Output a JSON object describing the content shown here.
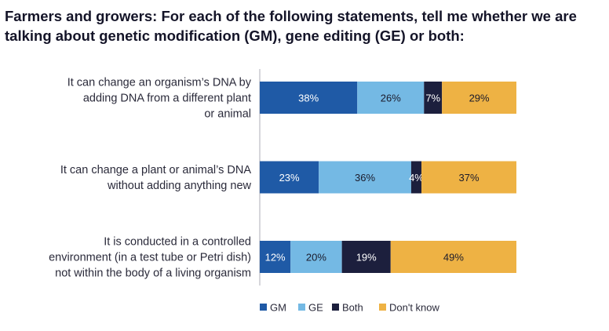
{
  "title": "Farmers and growers: For each of the following statements, tell me whether we are talking about genetic modification (GM), gene editing (GE) or both:",
  "chart_data": {
    "type": "bar",
    "orientation": "horizontal",
    "stacked": true,
    "categories": [
      [
        "It can change an organism’s DNA by",
        "adding DNA from a different plant",
        "or animal"
      ],
      [
        "It can change a plant or animal’s DNA",
        "without adding anything new"
      ],
      [
        "It is conducted in a controlled",
        "environment (in a test tube or Petri dish)",
        "not within the body of a living organism"
      ]
    ],
    "series": [
      {
        "name": "GM",
        "color": "#1f5aa6",
        "text_color": "#ffffff",
        "values": [
          38,
          23,
          12
        ],
        "labels": [
          "38%",
          "23%",
          "12%"
        ]
      },
      {
        "name": "GE",
        "color": "#74b9e4",
        "text_color": "#1b1b2b",
        "values": [
          26,
          36,
          20
        ],
        "labels": [
          "26%",
          "36%",
          "20%"
        ]
      },
      {
        "name": "Both",
        "color": "#1c1f3d",
        "text_color": "#ffffff",
        "values": [
          7,
          4,
          19
        ],
        "labels": [
          "7%",
          "4%",
          "19%"
        ]
      },
      {
        "name": "Don't know",
        "color": "#eeb244",
        "text_color": "#1b1b2b",
        "values": [
          29,
          37,
          49
        ],
        "labels": [
          "29%",
          "37%",
          "49%"
        ]
      }
    ],
    "xlim": [
      0,
      100
    ],
    "grid": false,
    "legend_position": "bottom"
  }
}
